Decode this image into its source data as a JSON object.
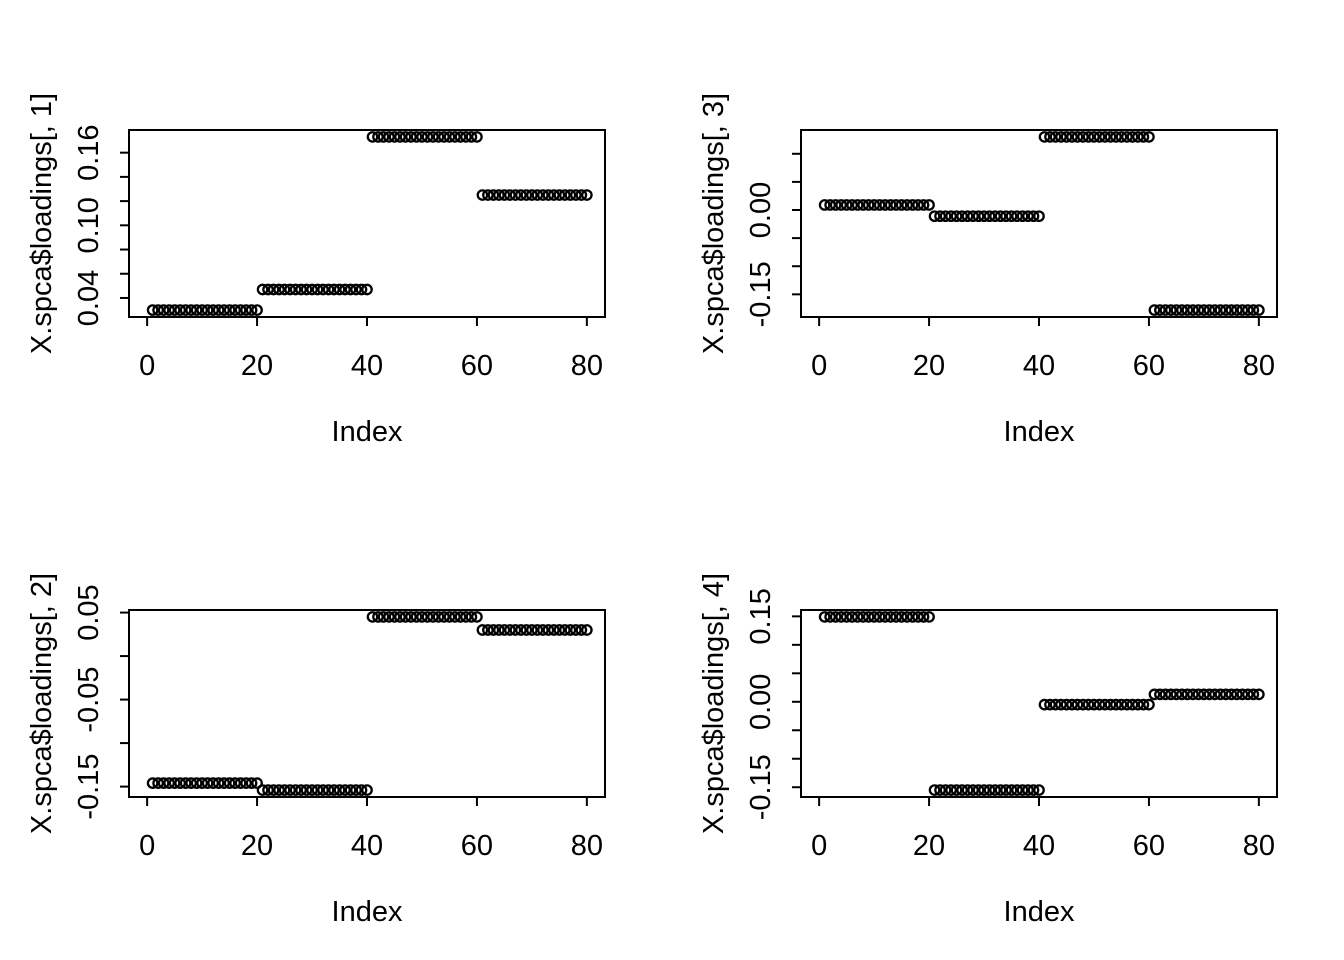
{
  "figure": {
    "background": "#ffffff",
    "foreground": "#000000",
    "description": "2x2 grid of R base-graphics scatter plots of sparse PCA loadings vs Index",
    "marker": "open-circle"
  },
  "axes_defaults": {
    "xlabel": "Index",
    "x_ticks": [
      0,
      20,
      40,
      60,
      80
    ],
    "x_tick_labels": [
      "0",
      "20",
      "40",
      "60",
      "80"
    ],
    "x_range": [
      1,
      80
    ],
    "n_points": 80,
    "points_per_group": 20
  },
  "chart_data": [
    {
      "type": "scatter",
      "position": "top-left",
      "ylabel": "X.spca$loadings[, 1]",
      "xlabel": "Index",
      "x_description": "Index 1..80, four constant groups of 20 points",
      "groups": [
        {
          "indices": "1-20",
          "value": 0.03
        },
        {
          "indices": "21-40",
          "value": 0.047
        },
        {
          "indices": "41-60",
          "value": 0.173
        },
        {
          "indices": "61-80",
          "value": 0.125
        }
      ],
      "y_ticks": [
        {
          "value": 0.04,
          "label": "0.04"
        },
        {
          "value": 0.06,
          "label": ""
        },
        {
          "value": 0.08,
          "label": ""
        },
        {
          "value": 0.1,
          "label": "0.10"
        },
        {
          "value": 0.12,
          "label": ""
        },
        {
          "value": 0.14,
          "label": ""
        },
        {
          "value": 0.16,
          "label": "0.16"
        }
      ],
      "ylim_rule": "data min/max extended 4% each side"
    },
    {
      "type": "scatter",
      "position": "top-right",
      "ylabel": "X.spca$loadings[, 3]",
      "xlabel": "Index",
      "x_description": "Index 1..80, four constant groups of 20 points",
      "groups": [
        {
          "indices": "1-20",
          "value": 0.009
        },
        {
          "indices": "21-40",
          "value": -0.011
        },
        {
          "indices": "41-60",
          "value": 0.13
        },
        {
          "indices": "61-80",
          "value": -0.178
        }
      ],
      "y_ticks": [
        {
          "value": -0.15,
          "label": "-0.15"
        },
        {
          "value": -0.1,
          "label": ""
        },
        {
          "value": -0.05,
          "label": ""
        },
        {
          "value": 0.0,
          "label": "0.00"
        },
        {
          "value": 0.05,
          "label": ""
        },
        {
          "value": 0.1,
          "label": ""
        }
      ],
      "ylim_rule": "data min/max extended 4% each side"
    },
    {
      "type": "scatter",
      "position": "bottom-left",
      "ylabel": "X.spca$loadings[, 2]",
      "xlabel": "Index",
      "x_description": "Index 1..80, four constant groups of 20 points",
      "groups": [
        {
          "indices": "1-20",
          "value": -0.146
        },
        {
          "indices": "21-40",
          "value": -0.154
        },
        {
          "indices": "41-60",
          "value": 0.045
        },
        {
          "indices": "61-80",
          "value": 0.03
        }
      ],
      "y_ticks": [
        {
          "value": -0.15,
          "label": "-0.15"
        },
        {
          "value": -0.1,
          "label": ""
        },
        {
          "value": -0.05,
          "label": "-0.05"
        },
        {
          "value": 0.0,
          "label": ""
        },
        {
          "value": 0.05,
          "label": "0.05"
        }
      ],
      "ylim_rule": "data min/max extended 4% each side"
    },
    {
      "type": "scatter",
      "position": "bottom-right",
      "ylabel": "X.spca$loadings[, 4]",
      "xlabel": "Index",
      "x_description": "Index 1..80, four constant groups of 20 points",
      "groups": [
        {
          "indices": "1-20",
          "value": 0.149
        },
        {
          "indices": "21-40",
          "value": -0.155
        },
        {
          "indices": "41-60",
          "value": -0.005
        },
        {
          "indices": "61-80",
          "value": 0.013
        }
      ],
      "y_ticks": [
        {
          "value": -0.15,
          "label": "-0.15"
        },
        {
          "value": -0.1,
          "label": ""
        },
        {
          "value": -0.05,
          "label": ""
        },
        {
          "value": 0.0,
          "label": "0.00"
        },
        {
          "value": 0.05,
          "label": ""
        },
        {
          "value": 0.1,
          "label": ""
        },
        {
          "value": 0.15,
          "label": "0.15"
        }
      ],
      "ylim_rule": "data min/max extended 4% each side"
    }
  ]
}
